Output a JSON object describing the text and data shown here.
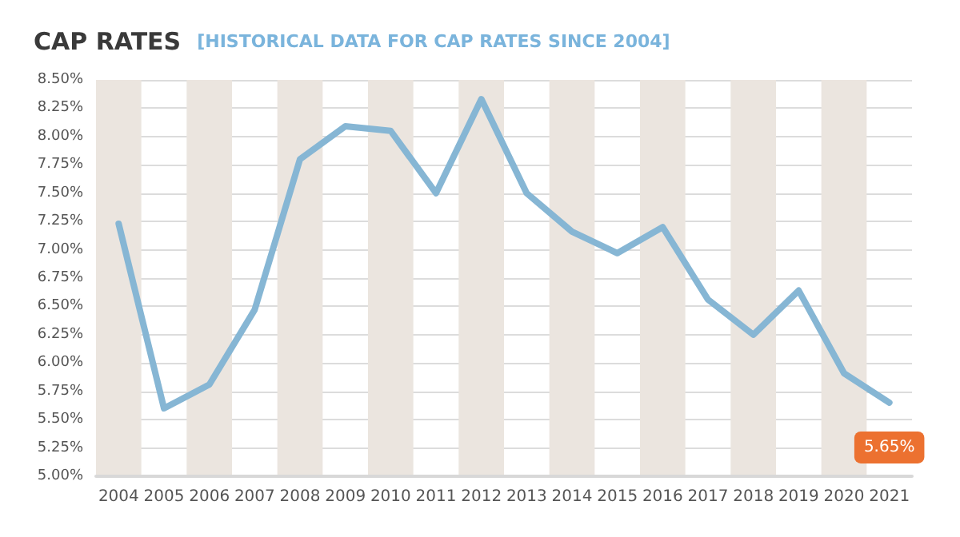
{
  "chart_data": {
    "type": "line",
    "title": "CAP RATES",
    "subtitle": "[HISTORICAL DATA FOR CAP RATES SINCE 2004]",
    "categories": [
      "2004",
      "2005",
      "2006",
      "2007",
      "2008",
      "2009",
      "2010",
      "2011",
      "2012",
      "2013",
      "2014",
      "2015",
      "2016",
      "2017",
      "2018",
      "2019",
      "2020",
      "2021"
    ],
    "series": [
      {
        "color": "#86b6d4",
        "values": [
          7.23,
          5.6,
          5.81,
          6.47,
          7.8,
          8.09,
          8.05,
          7.5,
          8.33,
          7.5,
          7.16,
          6.97,
          7.2,
          6.56,
          6.25,
          6.64,
          5.91,
          5.65
        ],
        "value_labels": [
          null,
          null,
          null,
          null,
          null,
          null,
          null,
          null,
          null,
          null,
          null,
          null,
          null,
          null,
          null,
          null,
          null,
          "5.65%"
        ]
      }
    ],
    "ylim": [
      5,
      8.5
    ],
    "yticks": [
      {
        "value": 5,
        "label": "5.00%"
      },
      {
        "value": 5.25,
        "label": "5.25%"
      },
      {
        "value": 5.5,
        "label": "5.50%"
      },
      {
        "value": 5.75,
        "label": "5.75%"
      },
      {
        "value": 6,
        "label": "6.00%"
      },
      {
        "value": 6.25,
        "label": "6.25%"
      },
      {
        "value": 6.5,
        "label": "6.50%"
      },
      {
        "value": 6.75,
        "label": "6.75%"
      },
      {
        "value": 7,
        "label": "7.00%"
      },
      {
        "value": 7.25,
        "label": "7.25%"
      },
      {
        "value": 7.5,
        "label": "7.50%"
      },
      {
        "value": 7.75,
        "label": "7.75%"
      },
      {
        "value": 8,
        "label": "8.00%"
      },
      {
        "value": 8.25,
        "label": "8.25%"
      },
      {
        "value": 8.5,
        "label": "8.50%"
      }
    ],
    "bands": [
      {
        "axis": "x",
        "from": "2004",
        "to": "2004",
        "color": "#ebe5df"
      },
      {
        "axis": "x",
        "from": "2006",
        "to": "2006",
        "color": "#ebe5df"
      },
      {
        "axis": "x",
        "from": "2008",
        "to": "2008",
        "color": "#ebe5df"
      },
      {
        "axis": "x",
        "from": "2010",
        "to": "2010",
        "color": "#ebe5df"
      },
      {
        "axis": "x",
        "from": "2012",
        "to": "2012",
        "color": "#ebe5df"
      },
      {
        "axis": "x",
        "from": "2014",
        "to": "2014",
        "color": "#ebe5df"
      },
      {
        "axis": "x",
        "from": "2016",
        "to": "2016",
        "color": "#ebe5df"
      },
      {
        "axis": "x",
        "from": "2018",
        "to": "2018",
        "color": "#ebe5df"
      },
      {
        "axis": "x",
        "from": "2020",
        "to": "2020",
        "color": "#ebe5df"
      }
    ],
    "grid": "y",
    "marker": "none",
    "line_style": "solid"
  }
}
